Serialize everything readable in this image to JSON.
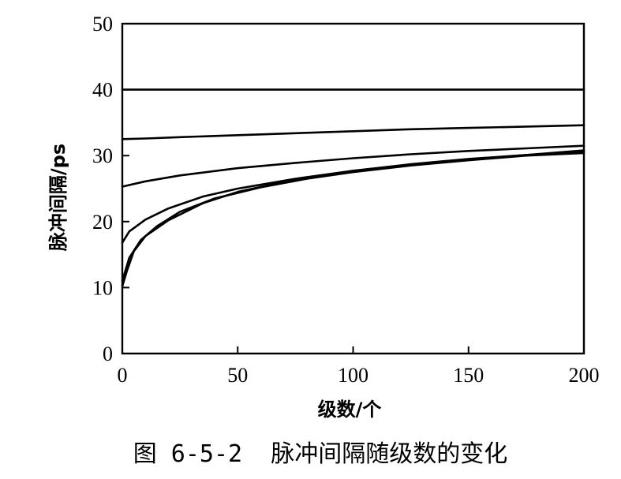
{
  "chart_data": {
    "type": "line",
    "title": "",
    "xlabel": "级数/个",
    "ylabel": "脉冲间隔/ps",
    "xlim": [
      0,
      200
    ],
    "ylim": [
      0,
      50
    ],
    "xticks": [
      0,
      50,
      100,
      150,
      200
    ],
    "yticks": [
      0,
      10,
      20,
      30,
      40,
      50
    ],
    "grid": false,
    "series": [
      {
        "x": [
          0,
          200
        ],
        "y": [
          40,
          40
        ]
      },
      {
        "x": [
          0,
          10,
          25,
          50,
          75,
          100,
          125,
          150,
          175,
          200
        ],
        "y": [
          32.5,
          32.6,
          32.8,
          33.1,
          33.4,
          33.7,
          34.0,
          34.2,
          34.4,
          34.6
        ]
      },
      {
        "x": [
          0,
          10,
          25,
          50,
          75,
          100,
          125,
          150,
          175,
          200
        ],
        "y": [
          25.3,
          26.1,
          27.0,
          28.1,
          28.9,
          29.6,
          30.2,
          30.7,
          31.1,
          31.5
        ]
      },
      {
        "x": [
          0,
          3,
          10,
          20,
          35,
          50,
          75,
          100,
          125,
          150,
          175,
          200
        ],
        "y": [
          16.8,
          18.5,
          20.3,
          22.0,
          23.8,
          25.0,
          26.5,
          27.7,
          28.6,
          29.4,
          30.1,
          30.8
        ]
      },
      {
        "x": [
          0,
          2,
          5,
          10,
          20,
          35,
          50,
          75,
          100,
          125,
          150,
          175,
          200
        ],
        "y": [
          10.2,
          12.5,
          15.5,
          17.8,
          20.2,
          22.8,
          24.5,
          26.4,
          27.7,
          28.7,
          29.5,
          30.1,
          30.6
        ]
      },
      {
        "x": [
          0,
          3,
          8,
          15,
          25,
          40,
          60,
          80,
          100,
          125,
          150,
          175,
          200
        ],
        "y": [
          11.0,
          14.5,
          17.2,
          19.3,
          21.5,
          23.5,
          25.2,
          26.5,
          27.5,
          28.5,
          29.3,
          30.0,
          30.4
        ]
      }
    ]
  },
  "caption": "图 6-5-2  脉冲间隔随级数的变化"
}
